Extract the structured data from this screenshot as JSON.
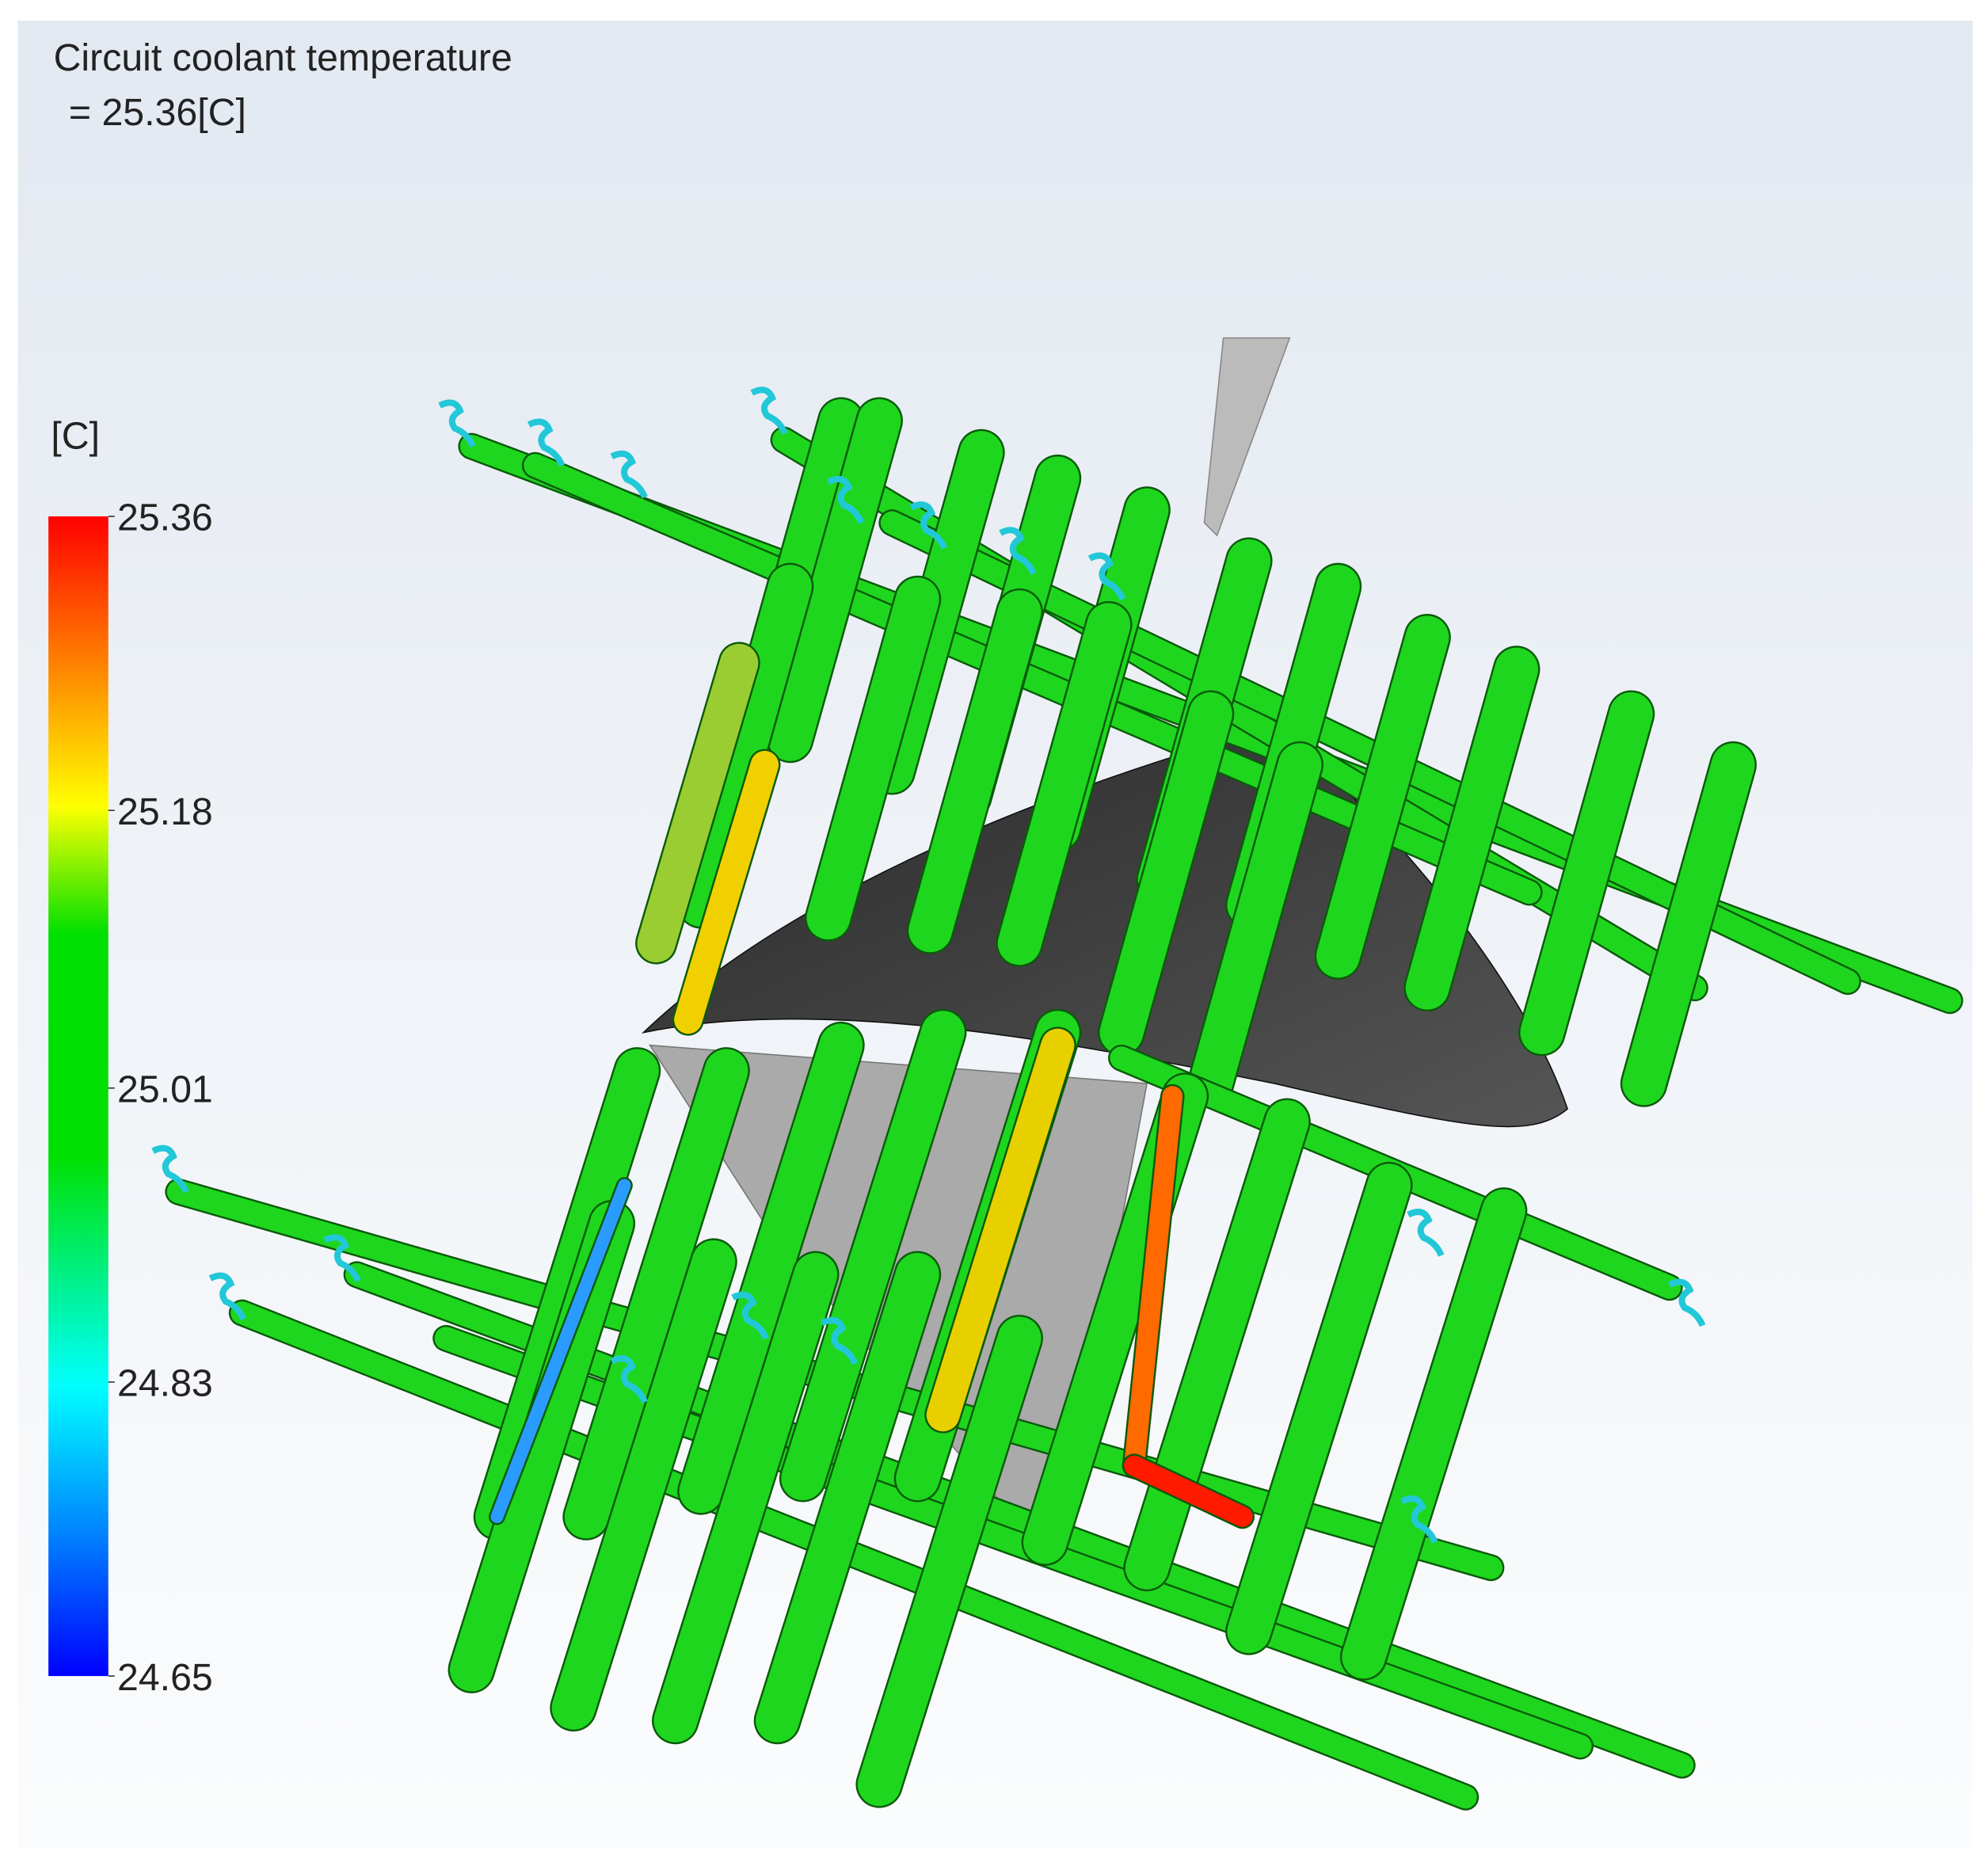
{
  "header": {
    "title": "Circuit coolant temperature",
    "value": "= 25.36[C]"
  },
  "legend": {
    "unit": "[C]",
    "range": [
      24.65,
      25.36
    ],
    "ticks": [
      25.36,
      25.18,
      25.01,
      24.83,
      24.65
    ]
  }
}
